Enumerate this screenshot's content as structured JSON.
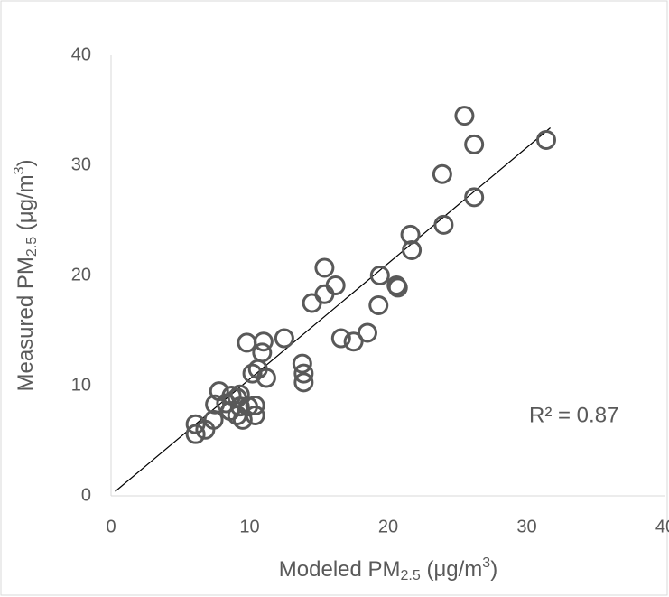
{
  "chart_data": {
    "type": "scatter",
    "xlabel": [
      "Modeled PM",
      "2.5",
      " (μg/m",
      "3",
      ")"
    ],
    "ylabel": [
      "Measured PM",
      "2.5",
      "  (μg/m",
      "3",
      ")"
    ],
    "annotation": "R² = 0.87",
    "xlim": [
      0,
      40
    ],
    "xticks": [
      0,
      10,
      20,
      30,
      40
    ],
    "ylim": [
      0,
      40
    ],
    "yticks": [
      0,
      10,
      20,
      30,
      40
    ],
    "color": "#595959",
    "trendline": {
      "x": [
        0.3,
        31.7
      ],
      "y": [
        0.4,
        33.4
      ]
    },
    "x": [
      25.5,
      26.2,
      31.4,
      23.9,
      26.2,
      24.0,
      21.6,
      21.7,
      15.4,
      19.4,
      15.4,
      16.2,
      14.5,
      20.6,
      20.7,
      19.3,
      12.5,
      9.8,
      11.0,
      10.9,
      16.6,
      17.5,
      18.5,
      13.8,
      13.9,
      13.9,
      10.2,
      10.6,
      11.2,
      7.8,
      8.7,
      9.1,
      8.3,
      7.5,
      9.3,
      9.9,
      8.6,
      9.1,
      9.5,
      10.4,
      10.4,
      7.4,
      6.8,
      6.1,
      6.1,
      9.3
    ],
    "y": [
      34.5,
      31.9,
      32.3,
      29.2,
      27.1,
      24.6,
      23.7,
      22.3,
      20.7,
      20.0,
      18.3,
      19.1,
      17.5,
      19.1,
      18.9,
      17.3,
      14.3,
      13.9,
      14.0,
      13.0,
      14.3,
      14.0,
      14.8,
      12.0,
      11.1,
      10.3,
      11.1,
      11.5,
      10.7,
      9.5,
      9.1,
      8.9,
      8.4,
      8.3,
      8.1,
      8.1,
      7.7,
      7.3,
      6.9,
      7.3,
      8.2,
      6.9,
      6.0,
      6.5,
      5.6,
      9.2
    ]
  }
}
